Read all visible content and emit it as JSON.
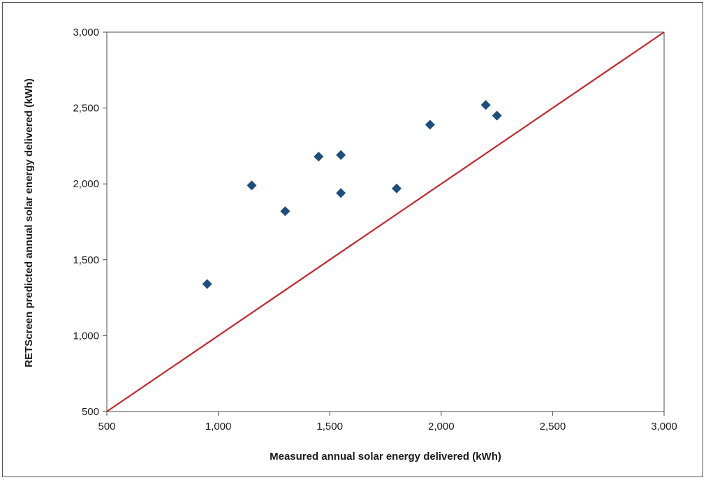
{
  "chart_data": {
    "type": "scatter",
    "title": "",
    "xlabel": "Measured annual solar energy delivered (kWh)",
    "ylabel": "RETScreen predicted annual solar energy delivered (kWh)",
    "xlim": [
      500,
      3000
    ],
    "ylim": [
      500,
      3000
    ],
    "x_ticks": [
      500,
      1000,
      1500,
      2000,
      2500,
      3000
    ],
    "y_ticks": [
      500,
      1000,
      1500,
      2000,
      2500,
      3000
    ],
    "x_tick_labels": [
      "500",
      "1,000",
      "1,500",
      "2,000",
      "2,500",
      "3,000"
    ],
    "y_tick_labels": [
      "500",
      "1,000",
      "1,500",
      "2,000",
      "2,500",
      "3,000"
    ],
    "grid": false,
    "legend": "none",
    "series": [
      {
        "marker": "diamond",
        "color": "#1d4e7d",
        "points": [
          {
            "x": 950,
            "y": 1340
          },
          {
            "x": 1150,
            "y": 1990
          },
          {
            "x": 1300,
            "y": 1820
          },
          {
            "x": 1450,
            "y": 2180
          },
          {
            "x": 1550,
            "y": 2190
          },
          {
            "x": 1550,
            "y": 1940
          },
          {
            "x": 1800,
            "y": 1970
          },
          {
            "x": 1950,
            "y": 2390
          },
          {
            "x": 2200,
            "y": 2520
          },
          {
            "x": 2250,
            "y": 2450
          }
        ]
      }
    ],
    "reference_line": {
      "points": [
        {
          "x": 500,
          "y": 500
        },
        {
          "x": 3000,
          "y": 3000
        }
      ],
      "color": "#c8242c"
    },
    "colors": {
      "axis": "#4d4d4d",
      "marker": "#1d4e7d",
      "reference_line": "#c8242c"
    }
  }
}
